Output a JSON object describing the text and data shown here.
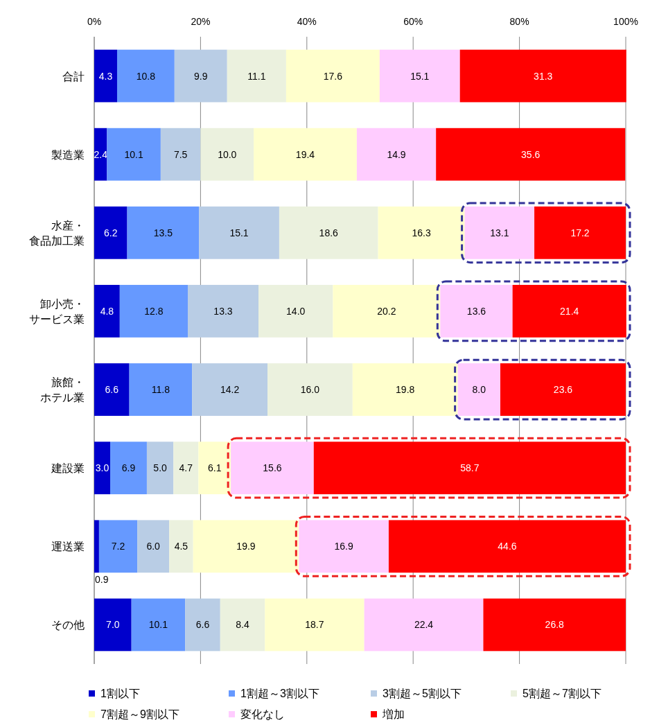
{
  "chart_data": {
    "type": "bar",
    "orientation": "horizontal",
    "stacked": true,
    "grid": "x",
    "legend": "bottom",
    "categories": [
      "合計",
      "製造業",
      "水産・食品加工業",
      "卸小売・サービス業",
      "旅館・ホテル業",
      "建設業",
      "運送業",
      "その他"
    ],
    "xlim": [
      0,
      100
    ],
    "xticks": [
      {
        "value": 0,
        "label": "0%"
      },
      {
        "value": 20,
        "label": "20%"
      },
      {
        "value": 40,
        "label": "40%"
      },
      {
        "value": 60,
        "label": "60%"
      },
      {
        "value": 80,
        "label": "80%"
      },
      {
        "value": 100,
        "label": "100%"
      }
    ],
    "series": [
      {
        "name": "1割以下",
        "color": "#0000cc",
        "values": [
          4.3,
          2.4,
          6.2,
          4.8,
          6.6,
          3.0,
          0.9,
          7.0
        ],
        "value_labels": [
          "4.3",
          "2.4",
          "6.2",
          "4.8",
          "6.6",
          "3.0",
          "0.9",
          "7.0"
        ]
      },
      {
        "name": "1割超～3割以下",
        "color": "#6699ff",
        "values": [
          10.8,
          10.1,
          13.5,
          12.8,
          11.8,
          6.9,
          7.2,
          10.1
        ],
        "value_labels": [
          "10.8",
          "10.1",
          "13.5",
          "12.8",
          "11.8",
          "6.9",
          "7.2",
          "10.1"
        ]
      },
      {
        "name": "3割超～5割以下",
        "color": "#b9cde5",
        "values": [
          9.9,
          7.5,
          15.1,
          13.3,
          14.2,
          5.0,
          6.0,
          6.6
        ],
        "value_labels": [
          "9.9",
          "7.5",
          "15.1",
          "13.3",
          "14.2",
          "5.0",
          "6.0",
          "6.6"
        ]
      },
      {
        "name": "5割超～7割以下",
        "color": "#ebf1de",
        "values": [
          11.1,
          10.0,
          18.6,
          14.0,
          16.0,
          4.7,
          4.5,
          8.4
        ],
        "value_labels": [
          "11.1",
          "10.0",
          "18.6",
          "14.0",
          "16.0",
          "4.7",
          "4.5",
          "8.4"
        ]
      },
      {
        "name": "7割超～9割以下",
        "color": "#ffffcc",
        "values": [
          17.6,
          19.4,
          16.3,
          20.2,
          19.8,
          6.1,
          19.9,
          18.7
        ],
        "value_labels": [
          "17.6",
          "19.4",
          "16.3",
          "20.2",
          "19.8",
          "6.1",
          "19.9",
          "18.7"
        ]
      },
      {
        "name": "変化なし",
        "color": "#ffccff",
        "values": [
          15.1,
          14.9,
          13.1,
          13.6,
          8.0,
          15.6,
          16.9,
          22.4
        ],
        "value_labels": [
          "15.1",
          "14.9",
          "13.1",
          "13.6",
          "8.0",
          "15.6",
          "16.9",
          "22.4"
        ]
      },
      {
        "name": "増加",
        "color": "#ff0000",
        "values": [
          31.3,
          35.6,
          17.2,
          21.4,
          23.6,
          58.7,
          44.6,
          26.8
        ],
        "value_labels": [
          "31.3",
          "35.6",
          "17.2",
          "21.4",
          "23.6",
          "58.7",
          "44.6",
          "26.8"
        ]
      }
    ]
  }
}
